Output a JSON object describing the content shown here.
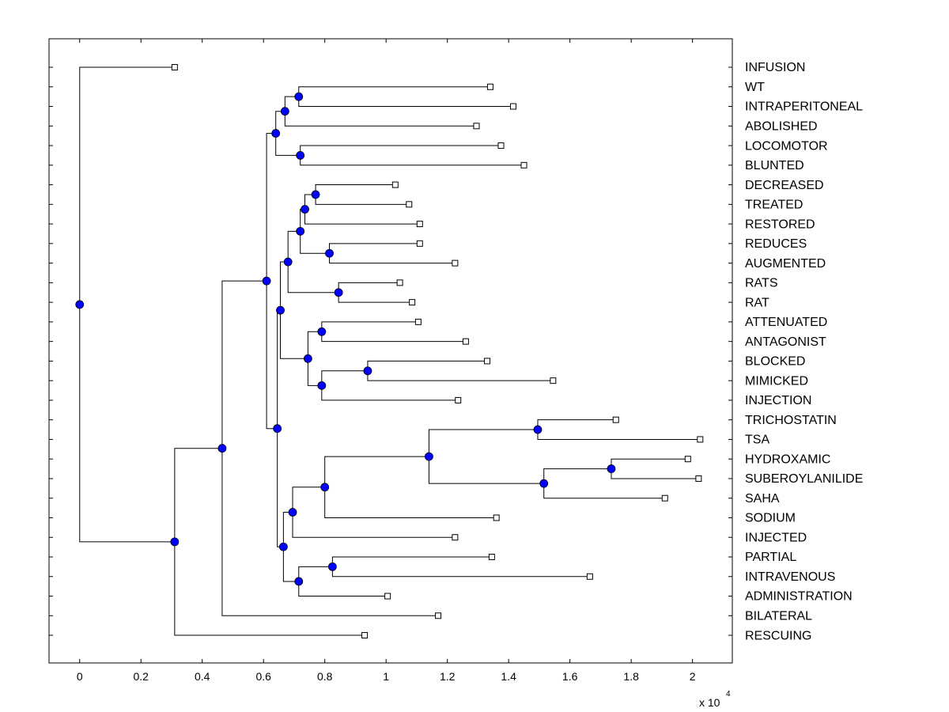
{
  "chart_data": {
    "type": "dendrogram",
    "title": "",
    "xlabel": "",
    "x_multiplier": {
      "base": "x 10",
      "exponent": "4"
    },
    "xlim": [
      -0.1,
      2.13
    ],
    "xticks": [
      0,
      0.2,
      0.4,
      0.6,
      0.8,
      1,
      1.2,
      1.4,
      1.6,
      1.8,
      2
    ],
    "xtick_labels": [
      "0",
      "0.2",
      "0.4",
      "0.6",
      "0.8",
      "1",
      "1.2",
      "1.4",
      "1.6",
      "1.8",
      "2"
    ],
    "leaves": [
      {
        "label": "INFUSION",
        "x": 0.31
      },
      {
        "label": "WT",
        "x": 1.34
      },
      {
        "label": "INTRAPERITONEAL",
        "x": 1.415
      },
      {
        "label": "ABOLISHED",
        "x": 1.295
      },
      {
        "label": "LOCOMOTOR",
        "x": 1.375
      },
      {
        "label": "BLUNTED",
        "x": 1.45
      },
      {
        "label": "DECREASED",
        "x": 1.03
      },
      {
        "label": "TREATED",
        "x": 1.075
      },
      {
        "label": "RESTORED",
        "x": 1.11
      },
      {
        "label": "REDUCES",
        "x": 1.11
      },
      {
        "label": "AUGMENTED",
        "x": 1.225
      },
      {
        "label": "RATS",
        "x": 1.045
      },
      {
        "label": "RAT",
        "x": 1.085
      },
      {
        "label": "ATTENUATED",
        "x": 1.105
      },
      {
        "label": "ANTAGONIST",
        "x": 1.26
      },
      {
        "label": "BLOCKED",
        "x": 1.33
      },
      {
        "label": "MIMICKED",
        "x": 1.545
      },
      {
        "label": "INJECTION",
        "x": 1.235
      },
      {
        "label": "TRICHOSTATIN",
        "x": 1.75
      },
      {
        "label": "TSA",
        "x": 2.025
      },
      {
        "label": "HYDROXAMIC",
        "x": 1.985
      },
      {
        "label": "SUBEROYLANILIDE",
        "x": 2.02
      },
      {
        "label": "SAHA",
        "x": 1.91
      },
      {
        "label": "SODIUM",
        "x": 1.36
      },
      {
        "label": "INJECTED",
        "x": 1.225
      },
      {
        "label": "PARTIAL",
        "x": 1.345
      },
      {
        "label": "INTRAVENOUS",
        "x": 1.665
      },
      {
        "label": "ADMINISTRATION",
        "x": 1.005
      },
      {
        "label": "BILATERAL",
        "x": 1.17
      },
      {
        "label": "RESCUING",
        "x": 0.93
      }
    ],
    "merges": [
      {
        "id": "n1",
        "x": 0.715,
        "children": [
          "WT",
          "INTRAPERITONEAL"
        ]
      },
      {
        "id": "n2",
        "x": 0.67,
        "children": [
          "n1",
          "ABOLISHED"
        ]
      },
      {
        "id": "n3",
        "x": 0.72,
        "children": [
          "LOCOMOTOR",
          "BLUNTED"
        ]
      },
      {
        "id": "n4",
        "x": 0.64,
        "children": [
          "n2",
          "n3"
        ]
      },
      {
        "id": "n5",
        "x": 0.77,
        "children": [
          "DECREASED",
          "TREATED"
        ]
      },
      {
        "id": "n6",
        "x": 0.735,
        "children": [
          "n5",
          "RESTORED"
        ]
      },
      {
        "id": "n7",
        "x": 0.815,
        "children": [
          "REDUCES",
          "AUGMENTED"
        ]
      },
      {
        "id": "n8",
        "x": 0.72,
        "children": [
          "n6",
          "n7"
        ]
      },
      {
        "id": "n9",
        "x": 0.845,
        "children": [
          "RATS",
          "RAT"
        ]
      },
      {
        "id": "n10",
        "x": 0.68,
        "children": [
          "n8",
          "n9"
        ]
      },
      {
        "id": "n11",
        "x": 0.79,
        "children": [
          "ATTENUATED",
          "ANTAGONIST"
        ]
      },
      {
        "id": "n12",
        "x": 0.94,
        "children": [
          "BLOCKED",
          "MIMICKED"
        ]
      },
      {
        "id": "n13",
        "x": 0.79,
        "children": [
          "n12",
          "INJECTION"
        ]
      },
      {
        "id": "n14",
        "x": 0.745,
        "children": [
          "n11",
          "n13"
        ]
      },
      {
        "id": "n15",
        "x": 0.655,
        "children": [
          "n10",
          "n14"
        ]
      },
      {
        "id": "n16",
        "x": 1.495,
        "children": [
          "TRICHOSTATIN",
          "TSA"
        ]
      },
      {
        "id": "n17",
        "x": 1.735,
        "children": [
          "HYDROXAMIC",
          "SUBEROYLANILIDE"
        ]
      },
      {
        "id": "n18",
        "x": 1.515,
        "children": [
          "n17",
          "SAHA"
        ]
      },
      {
        "id": "n19",
        "x": 1.14,
        "children": [
          "n16",
          "n18"
        ]
      },
      {
        "id": "n20",
        "x": 0.8,
        "children": [
          "n19",
          "SODIUM"
        ]
      },
      {
        "id": "n21",
        "x": 0.695,
        "children": [
          "n20",
          "INJECTED"
        ]
      },
      {
        "id": "n22",
        "x": 0.825,
        "children": [
          "PARTIAL",
          "INTRAVENOUS"
        ]
      },
      {
        "id": "n23",
        "x": 0.715,
        "children": [
          "n22",
          "ADMINISTRATION"
        ]
      },
      {
        "id": "n24",
        "x": 0.665,
        "children": [
          "n21",
          "n23"
        ]
      },
      {
        "id": "n25",
        "x": 0.645,
        "children": [
          "n15",
          "n24"
        ]
      },
      {
        "id": "n26",
        "x": 0.61,
        "children": [
          "n4",
          "n25"
        ]
      },
      {
        "id": "n27",
        "x": 0.465,
        "children": [
          "n26",
          "BILATERAL"
        ]
      },
      {
        "id": "n28",
        "x": 0.31,
        "children": [
          "n27",
          "RESCUING"
        ]
      },
      {
        "id": "n29",
        "x": 0.0,
        "children": [
          "INFUSION",
          "n28"
        ]
      }
    ],
    "node_color": "#0000ff",
    "line_color": "#000000",
    "leaf_marker": "open-square"
  }
}
